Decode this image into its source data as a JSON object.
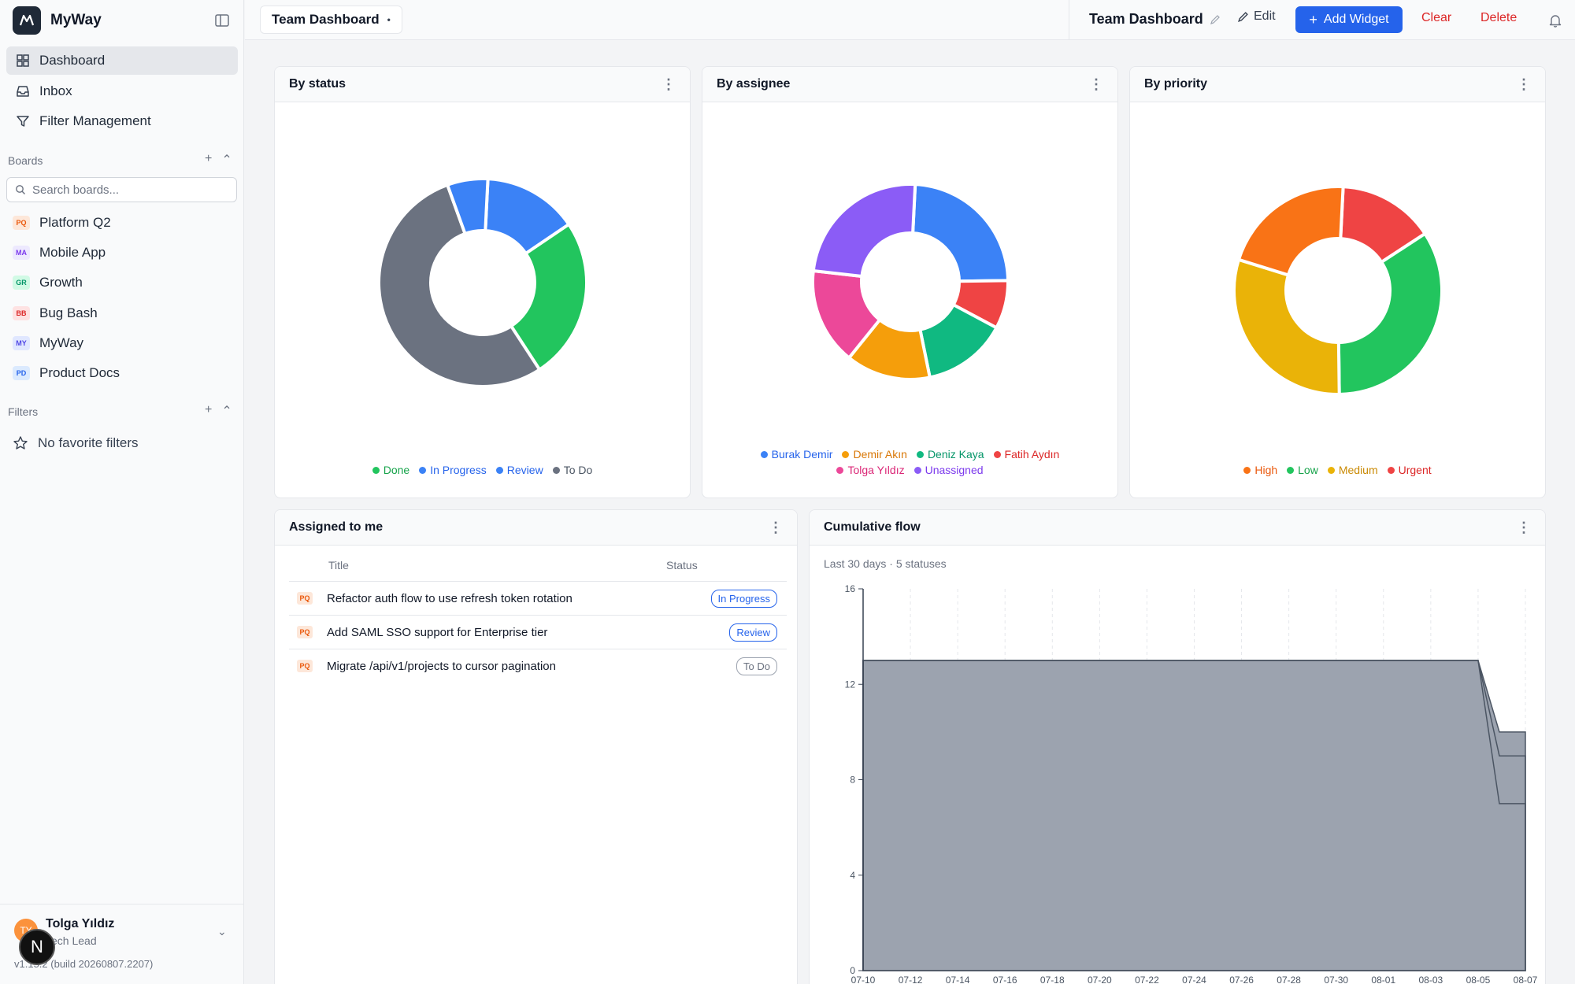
{
  "app": {
    "name": "MyWay"
  },
  "nav": [
    {
      "label": "Dashboard",
      "icon": "dashboard-icon",
      "active": true
    },
    {
      "label": "Inbox",
      "icon": "inbox-icon",
      "active": false
    },
    {
      "label": "Filter Management",
      "icon": "filter-icon",
      "active": false
    }
  ],
  "boards": {
    "label": "Boards",
    "search_placeholder": "Search boards...",
    "items": [
      {
        "badge": "PQ",
        "label": "Platform Q2",
        "bg": "#fde7d9",
        "fg": "#ea580c"
      },
      {
        "badge": "MA",
        "label": "Mobile App",
        "bg": "#ede9fe",
        "fg": "#7c3aed"
      },
      {
        "badge": "GR",
        "label": "Growth",
        "bg": "#d1fae5",
        "fg": "#059669"
      },
      {
        "badge": "BB",
        "label": "Bug Bash",
        "bg": "#fee2e2",
        "fg": "#dc2626"
      },
      {
        "badge": "MY",
        "label": "MyWay",
        "bg": "#e0e7ff",
        "fg": "#4f46e5"
      },
      {
        "badge": "PD",
        "label": "Product Docs",
        "bg": "#dbeafe",
        "fg": "#2563eb"
      }
    ]
  },
  "filters": {
    "label": "Filters",
    "empty": "No favorite filters"
  },
  "user": {
    "initials": "TY",
    "name": "Tolga Yıldız",
    "role": "Tech Lead",
    "version": "v1.15.2 (build 20260807.2207)"
  },
  "overlay": {
    "letter": "N"
  },
  "topbar": {
    "tab_label": "Team Dashboard",
    "tab_dot": "•",
    "title": "Team Dashboard",
    "edit_label": "Edit",
    "add_widget_label": "Add Widget",
    "clear_label": "Clear",
    "delete_label": "Delete"
  },
  "widgets": {
    "by_status": {
      "title": "By status",
      "menu": "⋮",
      "chart_data": {
        "type": "pie",
        "labels": [
          "Done",
          "In Progress",
          "Review",
          "To Do"
        ],
        "values": [
          24,
          6,
          14,
          51
        ],
        "colors": [
          "#22c55e",
          "#3b82f6",
          "#3b82f6",
          "#6b7280"
        ],
        "start_fraction": 0.25,
        "order": [
          "Review",
          "Done",
          "To Do",
          "In Progress"
        ],
        "order_values": [
          14,
          24,
          51,
          6
        ],
        "order_colors": [
          "#3b82f6",
          "#22c55e",
          "#6b7280",
          "#3b82f6"
        ]
      }
    },
    "by_assignee": {
      "title": "By assignee",
      "menu": "⋮",
      "chart_data": {
        "type": "pie",
        "labels": [
          "Burak Demir",
          "Demir Akın",
          "Deniz Kaya",
          "Fatih Aydın",
          "Tolga Yıldız",
          "Unassigned"
        ],
        "colors": [
          "#3b82f6",
          "#f59e0b",
          "#10b981",
          "#ef4444",
          "#ec4899",
          "#8b5cf6"
        ],
        "order": [
          "Burak Demir",
          "Fatih Aydın",
          "Deniz Kaya",
          "Demir Akın",
          "Tolga Yıldız",
          "Unassigned"
        ],
        "order_values": [
          24,
          8,
          14,
          14,
          16,
          24
        ],
        "order_colors": [
          "#3b82f6",
          "#ef4444",
          "#10b981",
          "#f59e0b",
          "#ec4899",
          "#8b5cf6"
        ]
      }
    },
    "by_priority": {
      "title": "By priority",
      "menu": "⋮",
      "chart_data": {
        "type": "pie",
        "labels": [
          "High",
          "Low",
          "Medium",
          "Urgent"
        ],
        "colors": [
          "#f97316",
          "#22c55e",
          "#eab308",
          "#ef4444"
        ],
        "order": [
          "Urgent",
          "Low",
          "Medium",
          "High"
        ],
        "order_values": [
          15,
          34,
          30,
          21
        ],
        "order_colors": [
          "#ef4444",
          "#22c55e",
          "#eab308",
          "#f97316"
        ]
      }
    },
    "assigned": {
      "title": "Assigned to me",
      "menu": "⋮",
      "col_title": "Title",
      "col_status": "Status",
      "rows": [
        {
          "badge": "PQ",
          "title": "Refactor auth flow to use refresh token rotation",
          "status": "In Progress",
          "status_color": "#2563eb"
        },
        {
          "badge": "PQ",
          "title": "Add SAML SSO support for Enterprise tier",
          "status": "Review",
          "status_color": "#2563eb"
        },
        {
          "badge": "PQ",
          "title": "Migrate /api/v1/projects to cursor pagination",
          "status": "To Do",
          "status_color": "#6b7280"
        }
      ]
    },
    "flow": {
      "title": "Cumulative flow",
      "menu": "⋮",
      "subtitle": "Last 30 days · 5 statuses",
      "chart_data": {
        "type": "area",
        "x": [
          "07-10",
          "07-12",
          "07-14",
          "07-16",
          "07-18",
          "07-20",
          "07-22",
          "07-24",
          "07-26",
          "07-28",
          "07-30",
          "08-01",
          "08-03",
          "08-05",
          "08-07"
        ],
        "y_ticks": [
          0,
          4,
          8,
          12,
          16
        ],
        "ylim": [
          0,
          16
        ],
        "series": [
          {
            "values": [
              13,
              13,
              13,
              13,
              13,
              13,
              13,
              13,
              13,
              13,
              13,
              13,
              13,
              13,
              10
            ]
          },
          {
            "values": [
              13,
              13,
              13,
              13,
              13,
              13,
              13,
              13,
              13,
              13,
              13,
              13,
              13,
              13,
              9
            ]
          },
          {
            "values": [
              13,
              13,
              13,
              13,
              13,
              13,
              13,
              13,
              13,
              13,
              13,
              13,
              13,
              13,
              7
            ]
          }
        ],
        "fill_color": "#9ca3af",
        "line_color": "#4b5563",
        "grid": true
      }
    }
  }
}
